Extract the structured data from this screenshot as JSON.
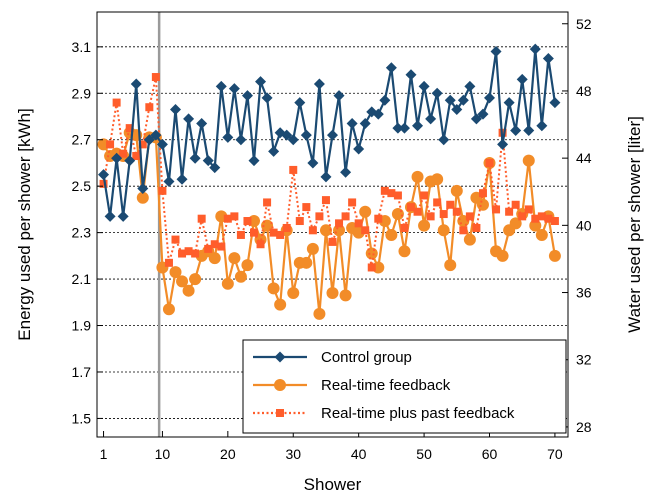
{
  "chart_data": {
    "type": "line",
    "xlabel": "Shower",
    "ylabel_left": "Energy used per shower [kWh]",
    "ylabel_right": "Water used per shower [liter]",
    "xlim": [
      0,
      72
    ],
    "ylim_left": [
      1.42,
      3.25
    ],
    "ylim_right": [
      27.4,
      52.7
    ],
    "x_ticks": [
      1,
      10,
      20,
      30,
      40,
      50,
      60,
      70
    ],
    "y_ticks_left": [
      1.5,
      1.7,
      1.9,
      2.1,
      2.3,
      2.5,
      2.7,
      2.9,
      3.1
    ],
    "y_ticks_right": [
      28,
      32,
      36,
      40,
      44,
      48,
      52
    ],
    "grid": "horizontal-dotted",
    "baseline_marker_x": 9.5,
    "legend_position": "bottom-right",
    "x": [
      1,
      2,
      3,
      4,
      5,
      6,
      7,
      8,
      9,
      10,
      11,
      12,
      13,
      14,
      15,
      16,
      17,
      18,
      19,
      20,
      21,
      22,
      23,
      24,
      25,
      26,
      27,
      28,
      29,
      30,
      31,
      32,
      33,
      34,
      35,
      36,
      37,
      38,
      39,
      40,
      41,
      42,
      43,
      44,
      45,
      46,
      47,
      48,
      49,
      50,
      51,
      52,
      53,
      54,
      55,
      56,
      57,
      58,
      59,
      60,
      61,
      62,
      63,
      64,
      65,
      66,
      67,
      68,
      69,
      70
    ],
    "series": [
      {
        "name": "Control group",
        "color": "#1b4a72",
        "marker": "diamond",
        "line": "solid",
        "values": [
          2.55,
          2.37,
          2.62,
          2.37,
          2.61,
          2.94,
          2.49,
          2.7,
          2.72,
          2.68,
          2.52,
          2.83,
          2.53,
          2.79,
          2.62,
          2.77,
          2.61,
          2.58,
          2.93,
          2.71,
          2.92,
          2.7,
          2.89,
          2.61,
          2.95,
          2.88,
          2.65,
          2.73,
          2.72,
          2.7,
          2.86,
          2.72,
          2.6,
          2.94,
          2.54,
          2.72,
          2.89,
          2.56,
          2.77,
          2.66,
          2.77,
          2.82,
          2.81,
          2.87,
          3.01,
          2.75,
          2.75,
          2.98,
          2.76,
          2.93,
          2.79,
          2.9,
          2.7,
          2.87,
          2.83,
          2.87,
          2.93,
          2.79,
          2.81,
          2.88,
          3.08,
          2.68,
          2.86,
          2.74,
          2.96,
          2.74,
          3.09,
          2.76,
          3.05,
          2.86
        ]
      },
      {
        "name": "Real-time feedback",
        "color": "#f28c28",
        "marker": "circle",
        "line": "solid",
        "values": [
          2.68,
          2.63,
          2.64,
          2.63,
          2.73,
          2.72,
          2.45,
          2.71,
          2.71,
          2.15,
          1.97,
          2.13,
          2.09,
          2.05,
          2.1,
          2.2,
          2.22,
          2.19,
          2.37,
          2.08,
          2.19,
          2.11,
          2.16,
          2.35,
          2.27,
          2.33,
          2.06,
          1.99,
          2.31,
          2.04,
          2.17,
          2.17,
          2.23,
          1.95,
          2.31,
          2.04,
          2.31,
          2.03,
          2.32,
          2.3,
          2.39,
          2.21,
          2.15,
          2.35,
          2.29,
          2.38,
          2.22,
          2.41,
          2.54,
          2.33,
          2.52,
          2.53,
          2.31,
          2.16,
          2.48,
          2.35,
          2.27,
          2.45,
          2.42,
          2.6,
          2.22,
          2.2,
          2.31,
          2.34,
          2.38,
          2.61,
          2.33,
          2.29,
          2.37,
          2.2
        ]
      },
      {
        "name": "Real-time plus past feedback",
        "color": "#ff5d2b",
        "marker": "square",
        "line": "dotted",
        "values": [
          2.51,
          2.68,
          2.86,
          2.64,
          2.75,
          2.63,
          2.68,
          2.84,
          2.97,
          2.48,
          2.17,
          2.27,
          2.21,
          2.22,
          2.21,
          2.36,
          2.23,
          2.25,
          2.24,
          2.36,
          2.37,
          2.29,
          2.35,
          2.3,
          2.25,
          2.43,
          2.3,
          2.29,
          2.32,
          2.57,
          2.35,
          2.41,
          2.31,
          2.37,
          2.44,
          2.26,
          2.34,
          2.37,
          2.43,
          2.34,
          2.31,
          2.15,
          2.36,
          2.48,
          2.47,
          2.46,
          2.32,
          2.41,
          2.39,
          2.46,
          2.37,
          2.43,
          2.38,
          2.42,
          2.39,
          2.31,
          2.37,
          2.32,
          2.47,
          2.6,
          2.4,
          2.73,
          2.39,
          2.42,
          2.37,
          2.4,
          2.36,
          2.37,
          2.36,
          2.35
        ]
      }
    ]
  }
}
